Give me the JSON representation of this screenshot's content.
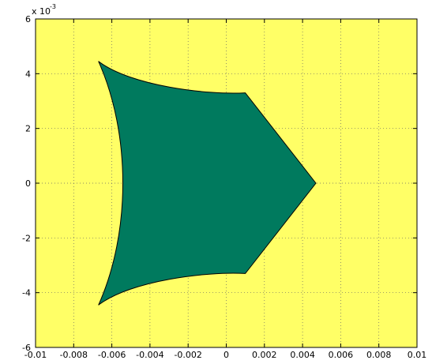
{
  "chart_data": {
    "type": "area",
    "title": "",
    "xlabel": "",
    "ylabel": "",
    "xlim": [
      -0.01,
      0.01
    ],
    "ylim": [
      -6,
      6
    ],
    "y_exponent_label": "x 10",
    "y_exponent_power": "-3",
    "grid": true,
    "grid_style": "dotted",
    "x_ticks": [
      -0.01,
      -0.008,
      -0.006,
      -0.004,
      -0.002,
      0,
      0.002,
      0.004,
      0.006,
      0.008,
      0.01
    ],
    "x_tick_labels": [
      "-0.01",
      "-0.008",
      "-0.006",
      "-0.004",
      "-0.002",
      "0",
      "0.002",
      "0.004",
      "0.006",
      "0.008",
      "0.01"
    ],
    "y_ticks": [
      -6,
      -4,
      -2,
      0,
      2,
      4,
      6
    ],
    "y_tick_labels": [
      "-6",
      "-4",
      "-2",
      "0",
      "2",
      "4",
      "6"
    ],
    "colors": {
      "plot_background": "#ffff66",
      "region_fill": "#007a5e",
      "region_edge": "#000000",
      "axes": "#000000",
      "grid": "#666666"
    },
    "region": {
      "comment_free": true,
      "vertices": [
        [
          0.0047,
          0.0
        ],
        [
          0.001,
          3.3
        ],
        [
          -0.0005,
          3.25
        ],
        [
          -0.003,
          3.55
        ],
        [
          -0.005,
          3.95
        ],
        [
          -0.0067,
          4.45
        ],
        [
          -0.006,
          2.9
        ],
        [
          -0.0054,
          1.5
        ],
        [
          -0.0052,
          0.0
        ],
        [
          -0.0054,
          -1.5
        ],
        [
          -0.006,
          -2.9
        ],
        [
          -0.0067,
          -4.45
        ],
        [
          -0.005,
          -3.95
        ],
        [
          -0.003,
          -3.55
        ],
        [
          -0.0005,
          -3.25
        ],
        [
          0.001,
          -3.3
        ]
      ]
    }
  }
}
